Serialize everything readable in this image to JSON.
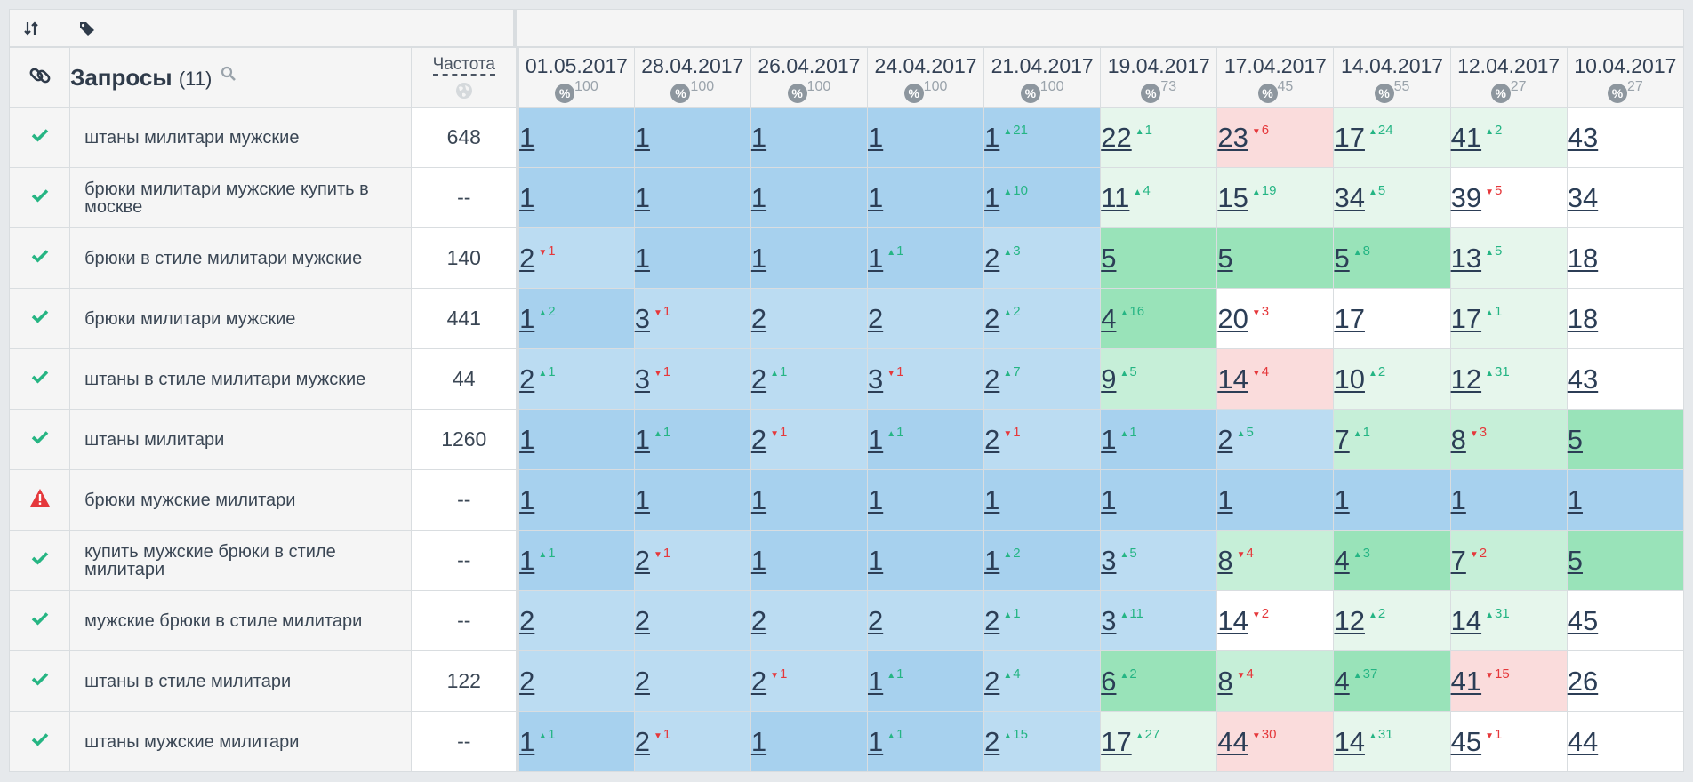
{
  "header": {
    "queries_title": "Запросы",
    "queries_count": "(11)",
    "frequency_label": "Частота"
  },
  "dates": [
    {
      "date": "01.05.2017",
      "pct": "100"
    },
    {
      "date": "28.04.2017",
      "pct": "100"
    },
    {
      "date": "26.04.2017",
      "pct": "100"
    },
    {
      "date": "24.04.2017",
      "pct": "100"
    },
    {
      "date": "21.04.2017",
      "pct": "100"
    },
    {
      "date": "19.04.2017",
      "pct": "73"
    },
    {
      "date": "17.04.2017",
      "pct": "45"
    },
    {
      "date": "14.04.2017",
      "pct": "55"
    },
    {
      "date": "12.04.2017",
      "pct": "27"
    },
    {
      "date": "10.04.2017",
      "pct": "27"
    }
  ],
  "pct_symbol": "%",
  "rows": [
    {
      "status": "ok",
      "query": "штаны милитари мужские",
      "freq": "648",
      "cells": [
        {
          "v": "1",
          "d": "",
          "bg": "b1"
        },
        {
          "v": "1",
          "d": "",
          "bg": "b1"
        },
        {
          "v": "1",
          "d": "",
          "bg": "b1"
        },
        {
          "v": "1",
          "d": "",
          "bg": "b1"
        },
        {
          "v": "1",
          "d": "+21",
          "bg": "b1"
        },
        {
          "v": "22",
          "d": "+1",
          "bg": "g3"
        },
        {
          "v": "23",
          "d": "-6",
          "bg": "r1"
        },
        {
          "v": "17",
          "d": "+24",
          "bg": "g3"
        },
        {
          "v": "41",
          "d": "+2",
          "bg": "g3"
        },
        {
          "v": "43",
          "d": "",
          "bg": "w"
        }
      ]
    },
    {
      "status": "ok",
      "query": "брюки милитари мужские купить в москве",
      "freq": "--",
      "cells": [
        {
          "v": "1",
          "d": "",
          "bg": "b1"
        },
        {
          "v": "1",
          "d": "",
          "bg": "b1"
        },
        {
          "v": "1",
          "d": "",
          "bg": "b1"
        },
        {
          "v": "1",
          "d": "",
          "bg": "b1"
        },
        {
          "v": "1",
          "d": "+10",
          "bg": "b1"
        },
        {
          "v": "11",
          "d": "+4",
          "bg": "g3"
        },
        {
          "v": "15",
          "d": "+19",
          "bg": "g3"
        },
        {
          "v": "34",
          "d": "+5",
          "bg": "g3"
        },
        {
          "v": "39",
          "d": "-5",
          "bg": "w"
        },
        {
          "v": "34",
          "d": "",
          "bg": "w"
        }
      ]
    },
    {
      "status": "ok",
      "query": "брюки в стиле милитари мужские",
      "freq": "140",
      "cells": [
        {
          "v": "2",
          "d": "-1",
          "bg": "b2"
        },
        {
          "v": "1",
          "d": "",
          "bg": "b1"
        },
        {
          "v": "1",
          "d": "",
          "bg": "b1"
        },
        {
          "v": "1",
          "d": "+1",
          "bg": "b1"
        },
        {
          "v": "2",
          "d": "+3",
          "bg": "b2"
        },
        {
          "v": "5",
          "d": "",
          "bg": "g1"
        },
        {
          "v": "5",
          "d": "",
          "bg": "g1"
        },
        {
          "v": "5",
          "d": "+8",
          "bg": "g1"
        },
        {
          "v": "13",
          "d": "+5",
          "bg": "g3"
        },
        {
          "v": "18",
          "d": "",
          "bg": "w"
        }
      ]
    },
    {
      "status": "ok",
      "query": "брюки милитари мужские",
      "freq": "441",
      "cells": [
        {
          "v": "1",
          "d": "+2",
          "bg": "b1"
        },
        {
          "v": "3",
          "d": "-1",
          "bg": "b2"
        },
        {
          "v": "2",
          "d": "",
          "bg": "b2"
        },
        {
          "v": "2",
          "d": "",
          "bg": "b2"
        },
        {
          "v": "2",
          "d": "+2",
          "bg": "b2"
        },
        {
          "v": "4",
          "d": "+16",
          "bg": "g1"
        },
        {
          "v": "20",
          "d": "-3",
          "bg": "w"
        },
        {
          "v": "17",
          "d": "",
          "bg": "w"
        },
        {
          "v": "17",
          "d": "+1",
          "bg": "g3"
        },
        {
          "v": "18",
          "d": "",
          "bg": "w"
        }
      ]
    },
    {
      "status": "ok",
      "query": "штаны в стиле милитари мужские",
      "freq": "44",
      "cells": [
        {
          "v": "2",
          "d": "+1",
          "bg": "b2"
        },
        {
          "v": "3",
          "d": "-1",
          "bg": "b2"
        },
        {
          "v": "2",
          "d": "+1",
          "bg": "b2"
        },
        {
          "v": "3",
          "d": "-1",
          "bg": "b2"
        },
        {
          "v": "2",
          "d": "+7",
          "bg": "b2"
        },
        {
          "v": "9",
          "d": "+5",
          "bg": "g2"
        },
        {
          "v": "14",
          "d": "-4",
          "bg": "r1"
        },
        {
          "v": "10",
          "d": "+2",
          "bg": "g3"
        },
        {
          "v": "12",
          "d": "+31",
          "bg": "g3"
        },
        {
          "v": "43",
          "d": "",
          "bg": "w"
        }
      ]
    },
    {
      "status": "ok",
      "query": "штаны милитари",
      "freq": "1260",
      "cells": [
        {
          "v": "1",
          "d": "",
          "bg": "b1"
        },
        {
          "v": "1",
          "d": "+1",
          "bg": "b1"
        },
        {
          "v": "2",
          "d": "-1",
          "bg": "b2"
        },
        {
          "v": "1",
          "d": "+1",
          "bg": "b1"
        },
        {
          "v": "2",
          "d": "-1",
          "bg": "b2"
        },
        {
          "v": "1",
          "d": "+1",
          "bg": "b1"
        },
        {
          "v": "2",
          "d": "+5",
          "bg": "b2"
        },
        {
          "v": "7",
          "d": "+1",
          "bg": "g2"
        },
        {
          "v": "8",
          "d": "-3",
          "bg": "g2"
        },
        {
          "v": "5",
          "d": "",
          "bg": "g1"
        }
      ]
    },
    {
      "status": "warn",
      "query": "брюки мужские милитари",
      "freq": "--",
      "cells": [
        {
          "v": "1",
          "d": "",
          "bg": "b1"
        },
        {
          "v": "1",
          "d": "",
          "bg": "b1"
        },
        {
          "v": "1",
          "d": "",
          "bg": "b1"
        },
        {
          "v": "1",
          "d": "",
          "bg": "b1"
        },
        {
          "v": "1",
          "d": "",
          "bg": "b1"
        },
        {
          "v": "1",
          "d": "",
          "bg": "b1"
        },
        {
          "v": "1",
          "d": "",
          "bg": "b1"
        },
        {
          "v": "1",
          "d": "",
          "bg": "b1"
        },
        {
          "v": "1",
          "d": "",
          "bg": "b1"
        },
        {
          "v": "1",
          "d": "",
          "bg": "b1"
        }
      ]
    },
    {
      "status": "ok",
      "query": "купить мужские брюки в стиле милитари",
      "freq": "--",
      "cells": [
        {
          "v": "1",
          "d": "+1",
          "bg": "b1"
        },
        {
          "v": "2",
          "d": "-1",
          "bg": "b2"
        },
        {
          "v": "1",
          "d": "",
          "bg": "b1"
        },
        {
          "v": "1",
          "d": "",
          "bg": "b1"
        },
        {
          "v": "1",
          "d": "+2",
          "bg": "b1"
        },
        {
          "v": "3",
          "d": "+5",
          "bg": "b2"
        },
        {
          "v": "8",
          "d": "-4",
          "bg": "g2"
        },
        {
          "v": "4",
          "d": "+3",
          "bg": "g1"
        },
        {
          "v": "7",
          "d": "-2",
          "bg": "g2"
        },
        {
          "v": "5",
          "d": "",
          "bg": "g1"
        }
      ]
    },
    {
      "status": "ok",
      "query": "мужские брюки в стиле милитари",
      "freq": "--",
      "cells": [
        {
          "v": "2",
          "d": "",
          "bg": "b2"
        },
        {
          "v": "2",
          "d": "",
          "bg": "b2"
        },
        {
          "v": "2",
          "d": "",
          "bg": "b2"
        },
        {
          "v": "2",
          "d": "",
          "bg": "b2"
        },
        {
          "v": "2",
          "d": "+1",
          "bg": "b2"
        },
        {
          "v": "3",
          "d": "+11",
          "bg": "b2"
        },
        {
          "v": "14",
          "d": "-2",
          "bg": "w"
        },
        {
          "v": "12",
          "d": "+2",
          "bg": "g3"
        },
        {
          "v": "14",
          "d": "+31",
          "bg": "g3"
        },
        {
          "v": "45",
          "d": "",
          "bg": "w"
        }
      ]
    },
    {
      "status": "ok",
      "query": "штаны в стиле милитари",
      "freq": "122",
      "cells": [
        {
          "v": "2",
          "d": "",
          "bg": "b2"
        },
        {
          "v": "2",
          "d": "",
          "bg": "b2"
        },
        {
          "v": "2",
          "d": "-1",
          "bg": "b2"
        },
        {
          "v": "1",
          "d": "+1",
          "bg": "b1"
        },
        {
          "v": "2",
          "d": "+4",
          "bg": "b2"
        },
        {
          "v": "6",
          "d": "+2",
          "bg": "g1"
        },
        {
          "v": "8",
          "d": "-4",
          "bg": "g2"
        },
        {
          "v": "4",
          "d": "+37",
          "bg": "g1"
        },
        {
          "v": "41",
          "d": "-15",
          "bg": "r1"
        },
        {
          "v": "26",
          "d": "",
          "bg": "w"
        }
      ]
    },
    {
      "status": "ok",
      "query": "штаны мужские милитари",
      "freq": "--",
      "cells": [
        {
          "v": "1",
          "d": "+1",
          "bg": "b1"
        },
        {
          "v": "2",
          "d": "-1",
          "bg": "b2"
        },
        {
          "v": "1",
          "d": "",
          "bg": "b1"
        },
        {
          "v": "1",
          "d": "+1",
          "bg": "b1"
        },
        {
          "v": "2",
          "d": "+15",
          "bg": "b2"
        },
        {
          "v": "17",
          "d": "+27",
          "bg": "g3"
        },
        {
          "v": "44",
          "d": "-30",
          "bg": "r1"
        },
        {
          "v": "14",
          "d": "+31",
          "bg": "g3"
        },
        {
          "v": "45",
          "d": "-1",
          "bg": "w"
        },
        {
          "v": "44",
          "d": "",
          "bg": "w"
        }
      ]
    }
  ],
  "colors": {
    "check": "#26b583",
    "warning": "#e5383b",
    "delta_up": "#25b584",
    "delta_down": "#e5383b",
    "blue_strong": "#a7d1ee",
    "blue_light": "#bbdcf2",
    "green_strong": "#99e3b9",
    "green_mid": "#c6efd8",
    "green_light": "#e6f6ec",
    "red_light": "#fadcdc"
  }
}
